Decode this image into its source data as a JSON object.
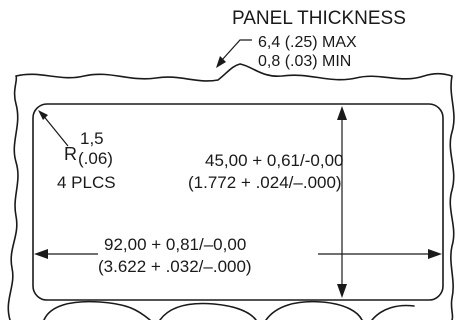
{
  "panel_thickness": {
    "title": "PANEL THICKNESS",
    "max": "6,4 (.25) MAX",
    "min": "0,8 (.03) MIN"
  },
  "corner_radius": {
    "prefix": "R",
    "metric": "1,5",
    "inch": "(.06)",
    "count": "4 PLCS"
  },
  "height_dimension": {
    "metric": "45,00  + 0,61/-0,00",
    "inch": "(1.772  + .024/–.000)"
  },
  "width_dimension": {
    "metric": "92,00  + 0,81/–0,00",
    "inch": "(3.622  + .032/–.000)"
  }
}
